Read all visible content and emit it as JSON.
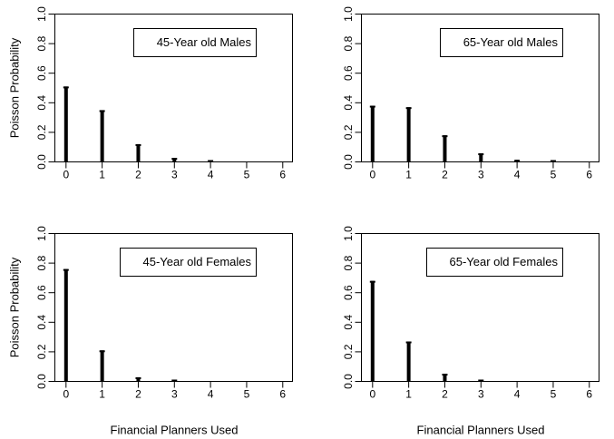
{
  "figure": {
    "background": "#ffffff",
    "axis_color": "#000000",
    "bar_color": "#000000",
    "layout": "2x2 grid of Poisson probability needle plots"
  },
  "chart_data": [
    {
      "type": "bar",
      "title": "45-Year old Males",
      "categories": [
        "0",
        "1",
        "2",
        "3",
        "4",
        "5",
        "6"
      ],
      "values": [
        0.51,
        0.35,
        0.12,
        0.027,
        0.005,
        0,
        0
      ],
      "xlabel": "",
      "ylabel": "Poisson Probability",
      "ylim": [
        0,
        1
      ],
      "y_ticks": [
        "0.0",
        "0.2",
        "0.4",
        "0.6",
        "0.8",
        "1.0"
      ],
      "grid": "off",
      "legend_position": "boxed label inside plot, upper right"
    },
    {
      "type": "bar",
      "title": "65-Year old Males",
      "categories": [
        "0",
        "1",
        "2",
        "3",
        "4",
        "5",
        "6"
      ],
      "values": [
        0.38,
        0.37,
        0.18,
        0.058,
        0.014,
        0.003,
        0
      ],
      "xlabel": "",
      "ylabel": "",
      "ylim": [
        0,
        1
      ],
      "y_ticks": [
        "0.0",
        "0.2",
        "0.4",
        "0.6",
        "0.8",
        "1.0"
      ],
      "grid": "off",
      "legend_position": "boxed label inside plot, upper right"
    },
    {
      "type": "bar",
      "title": "45-Year old Females",
      "categories": [
        "0",
        "1",
        "2",
        "3",
        "4",
        "5",
        "6"
      ],
      "values": [
        0.76,
        0.21,
        0.028,
        0.003,
        0,
        0,
        0
      ],
      "xlabel": "Financial Planners Used",
      "ylabel": "Poisson Probability",
      "ylim": [
        0,
        1
      ],
      "y_ticks": [
        "0.0",
        "0.2",
        "0.4",
        "0.6",
        "0.8",
        "1.0"
      ],
      "grid": "off",
      "legend_position": "boxed label inside plot, upper right"
    },
    {
      "type": "bar",
      "title": "65-Year old Females",
      "categories": [
        "0",
        "1",
        "2",
        "3",
        "4",
        "5",
        "6"
      ],
      "values": [
        0.68,
        0.27,
        0.052,
        0.007,
        0,
        0,
        0
      ],
      "xlabel": "Financial Planners Used",
      "ylabel": "",
      "ylim": [
        0,
        1
      ],
      "y_ticks": [
        "0.0",
        "0.2",
        "0.4",
        "0.6",
        "0.8",
        "1.0"
      ],
      "grid": "off",
      "legend_position": "boxed label inside plot, upper right"
    }
  ]
}
